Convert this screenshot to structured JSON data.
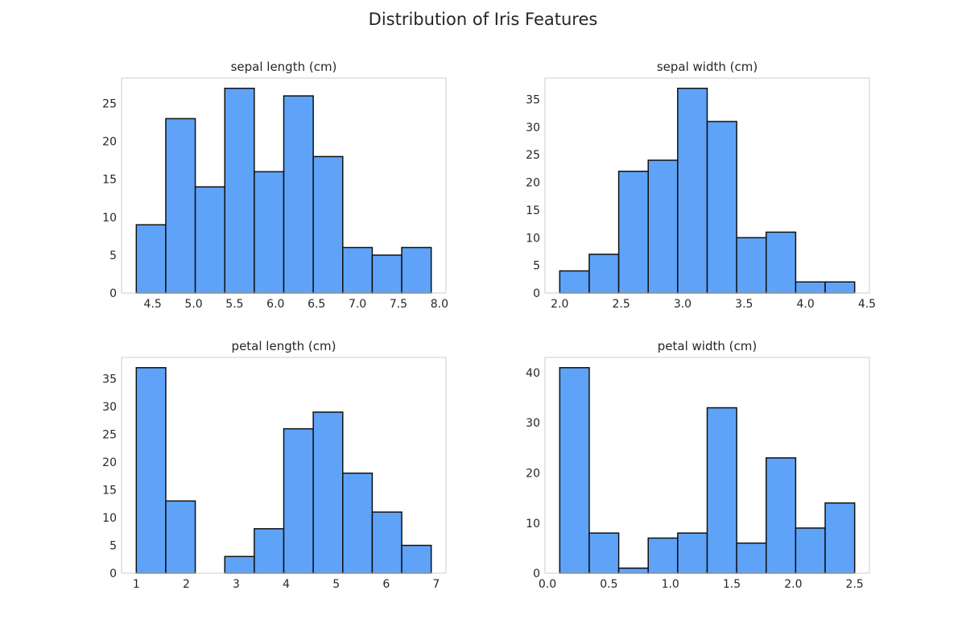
{
  "figure": {
    "title": "Distribution of Iris Features"
  },
  "style": {
    "bar_color": "#5ea3f8",
    "bar_edge_color": "#111111",
    "frame_color": "#cccccc",
    "text_color": "#262626",
    "grid": false
  },
  "chart_data": [
    {
      "type": "bar",
      "histogram": true,
      "title": "sepal length (cm)",
      "bin_edges": [
        4.3,
        4.66,
        5.02,
        5.38,
        5.74,
        6.1,
        6.46,
        6.82,
        7.18,
        7.54,
        7.9
      ],
      "values": [
        9,
        23,
        14,
        27,
        16,
        26,
        18,
        6,
        5,
        6
      ],
      "xlim": [
        4.12,
        8.08
      ],
      "ylim": [
        0,
        28.35
      ],
      "xticks": [
        4.5,
        5.0,
        5.5,
        6.0,
        6.5,
        7.0,
        7.5,
        8.0
      ],
      "xtick_labels": [
        "4.5",
        "5.0",
        "5.5",
        "6.0",
        "6.5",
        "7.0",
        "7.5",
        "8.0"
      ],
      "yticks": [
        0,
        5,
        10,
        15,
        20,
        25
      ],
      "ytick_labels": [
        "0",
        "5",
        "10",
        "15",
        "20",
        "25"
      ]
    },
    {
      "type": "bar",
      "histogram": true,
      "title": "sepal width (cm)",
      "bin_edges": [
        2.0,
        2.24,
        2.48,
        2.72,
        2.96,
        3.2,
        3.44,
        3.68,
        3.92,
        4.16,
        4.4
      ],
      "values": [
        4,
        7,
        22,
        24,
        37,
        31,
        10,
        11,
        2,
        2
      ],
      "xlim": [
        1.88,
        4.52
      ],
      "ylim": [
        0,
        38.85
      ],
      "xticks": [
        2.0,
        2.5,
        3.0,
        3.5,
        4.0,
        4.5
      ],
      "xtick_labels": [
        "2.0",
        "2.5",
        "3.0",
        "3.5",
        "4.0",
        "4.5"
      ],
      "yticks": [
        0,
        5,
        10,
        15,
        20,
        25,
        30,
        35
      ],
      "ytick_labels": [
        "0",
        "5",
        "10",
        "15",
        "20",
        "25",
        "30",
        "35"
      ]
    },
    {
      "type": "bar",
      "histogram": true,
      "title": "petal length (cm)",
      "bin_edges": [
        1.0,
        1.59,
        2.18,
        2.77,
        3.36,
        3.95,
        4.54,
        5.13,
        5.72,
        6.31,
        6.9
      ],
      "values": [
        37,
        13,
        0,
        3,
        8,
        26,
        29,
        18,
        11,
        5
      ],
      "xlim": [
        0.705,
        7.195
      ],
      "ylim": [
        0,
        38.85
      ],
      "xticks": [
        1,
        2,
        3,
        4,
        5,
        6,
        7
      ],
      "xtick_labels": [
        "1",
        "2",
        "3",
        "4",
        "5",
        "6",
        "7"
      ],
      "yticks": [
        0,
        5,
        10,
        15,
        20,
        25,
        30,
        35
      ],
      "ytick_labels": [
        "0",
        "5",
        "10",
        "15",
        "20",
        "25",
        "30",
        "35"
      ]
    },
    {
      "type": "bar",
      "histogram": true,
      "title": "petal width (cm)",
      "bin_edges": [
        0.1,
        0.34,
        0.58,
        0.82,
        1.06,
        1.3,
        1.54,
        1.78,
        2.02,
        2.26,
        2.5
      ],
      "values": [
        41,
        8,
        1,
        7,
        8,
        33,
        6,
        23,
        9,
        14
      ],
      "xlim": [
        -0.02,
        2.62
      ],
      "ylim": [
        0,
        43.05
      ],
      "xticks": [
        0.0,
        0.5,
        1.0,
        1.5,
        2.0,
        2.5
      ],
      "xtick_labels": [
        "0.0",
        "0.5",
        "1.0",
        "1.5",
        "2.0",
        "2.5"
      ],
      "yticks": [
        0,
        10,
        20,
        30,
        40
      ],
      "ytick_labels": [
        "0",
        "10",
        "20",
        "30",
        "40"
      ]
    }
  ]
}
